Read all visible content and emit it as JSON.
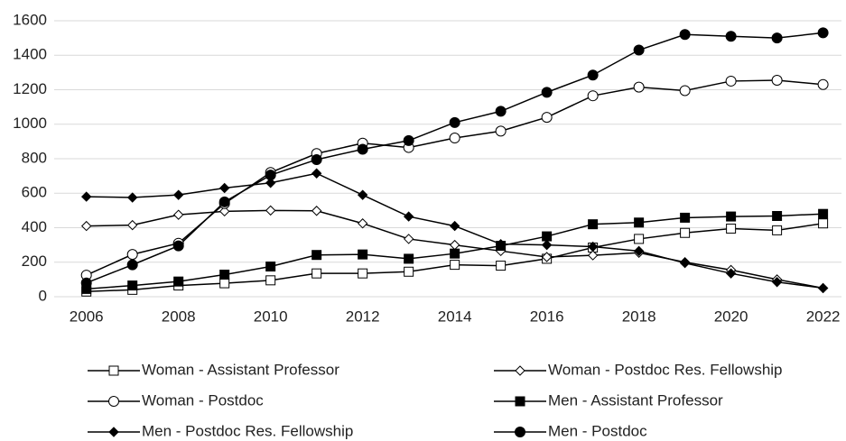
{
  "chart_data": {
    "type": "line",
    "x": [
      2006,
      2007,
      2008,
      2009,
      2010,
      2011,
      2012,
      2013,
      2014,
      2015,
      2016,
      2017,
      2018,
      2019,
      2020,
      2021,
      2022
    ],
    "xlim": [
      2005.3,
      2022.4
    ],
    "xticks": [
      2006,
      2008,
      2010,
      2012,
      2014,
      2016,
      2018,
      2020,
      2022
    ],
    "ylim": [
      0,
      1600
    ],
    "yticks": [
      0,
      200,
      400,
      600,
      800,
      1000,
      1200,
      1400,
      1600
    ],
    "grid": true,
    "legend": "bottom",
    "series": [
      {
        "name": "Woman - Assistant Professor",
        "color": "#000000",
        "marker": "square",
        "marker_fill": "#ffffff",
        "values": [
          30,
          40,
          65,
          78,
          95,
          135,
          135,
          145,
          185,
          180,
          220,
          285,
          335,
          370,
          395,
          385,
          425
        ]
      },
      {
        "name": "Woman - Postdoc Res. Fellowship",
        "color": "#000000",
        "marker": "diamond",
        "marker_fill": "#ffffff",
        "values": [
          410,
          415,
          475,
          495,
          500,
          498,
          425,
          335,
          300,
          265,
          230,
          240,
          255,
          200,
          155,
          100,
          50
        ]
      },
      {
        "name": "Woman - Postdoc",
        "color": "#000000",
        "marker": "circle",
        "marker_fill": "#ffffff",
        "values": [
          125,
          245,
          310,
          540,
          720,
          830,
          890,
          865,
          920,
          960,
          1040,
          1165,
          1215,
          1195,
          1250,
          1255,
          1230
        ]
      },
      {
        "name": "Men - Assistant Professor",
        "color": "#000000",
        "marker": "square",
        "marker_fill": "#000000",
        "values": [
          45,
          65,
          88,
          128,
          175,
          242,
          245,
          220,
          250,
          295,
          350,
          420,
          430,
          458,
          465,
          468,
          480
        ]
      },
      {
        "name": "Men - Postdoc Res. Fellowship",
        "color": "#000000",
        "marker": "diamond",
        "marker_fill": "#000000",
        "values": [
          580,
          575,
          590,
          630,
          660,
          715,
          590,
          465,
          410,
          305,
          300,
          290,
          265,
          195,
          135,
          85,
          50
        ]
      },
      {
        "name": "Men - Postdoc",
        "color": "#000000",
        "marker": "circle",
        "marker_fill": "#000000",
        "values": [
          80,
          185,
          295,
          550,
          705,
          795,
          855,
          905,
          1010,
          1075,
          1185,
          1285,
          1430,
          1520,
          1510,
          1500,
          1530
        ]
      }
    ]
  }
}
